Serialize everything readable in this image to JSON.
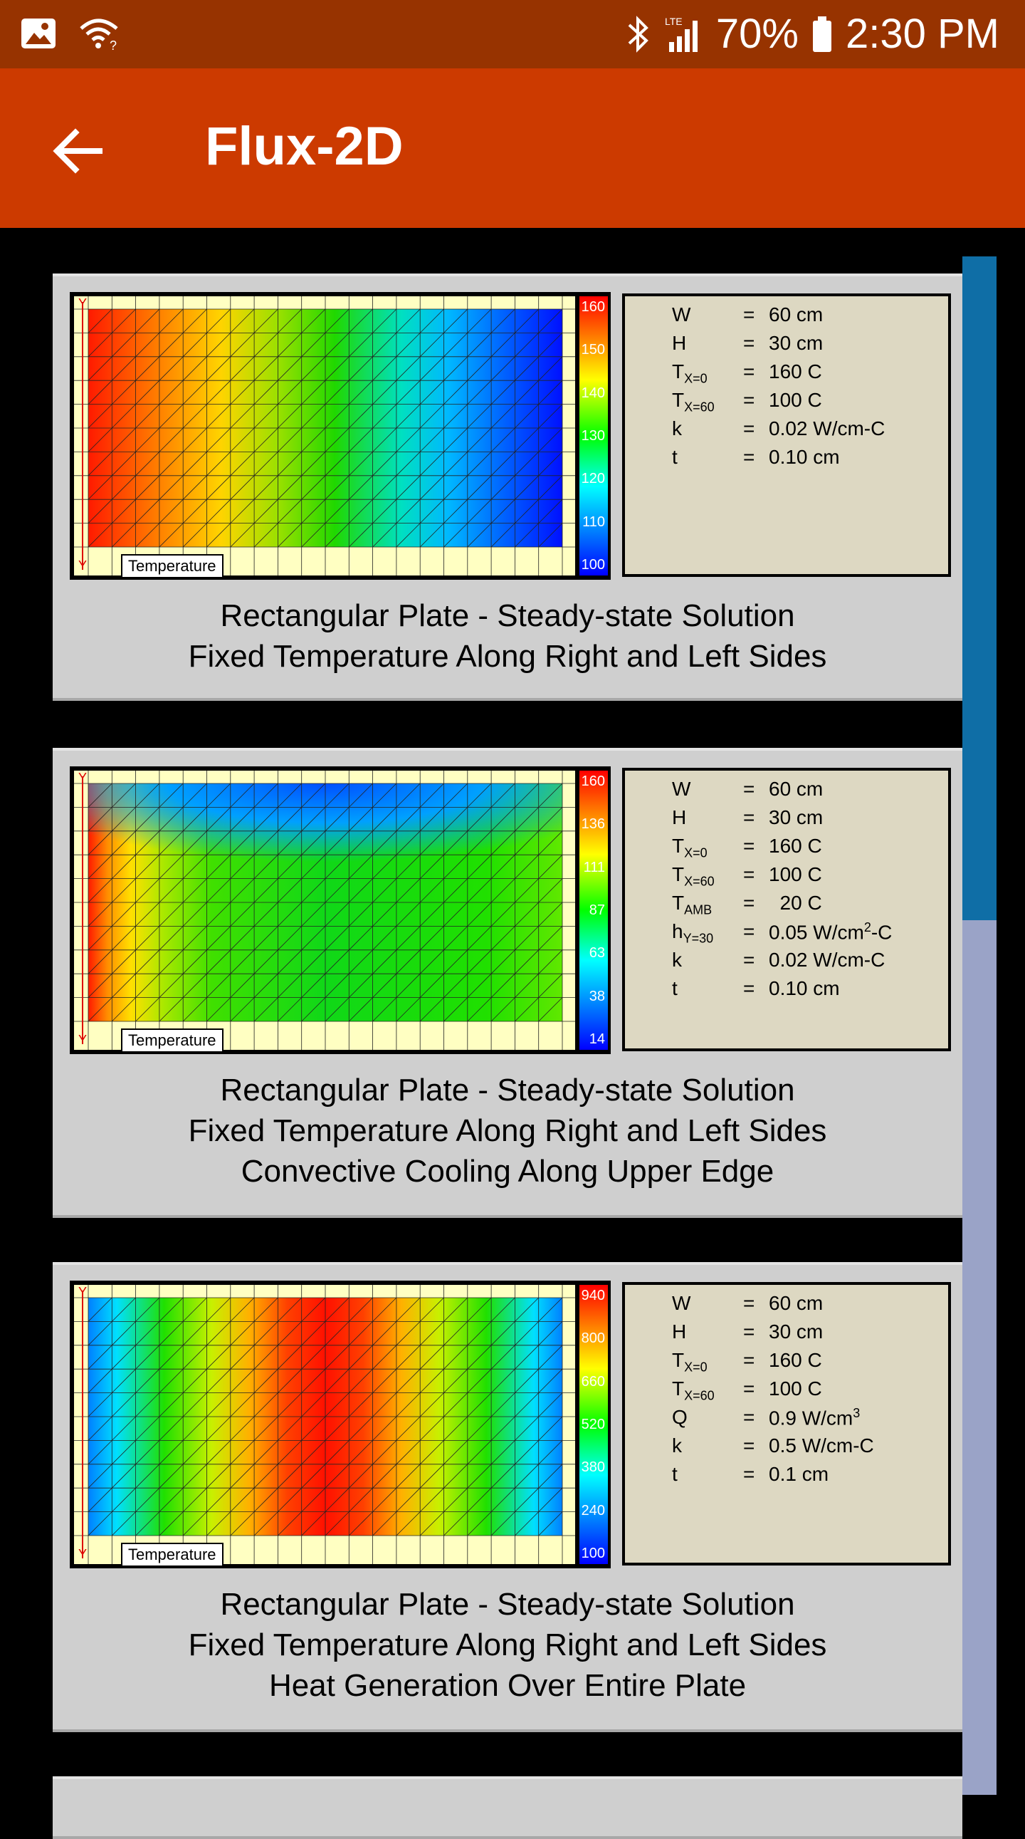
{
  "status": {
    "battery": "70%",
    "time": "2:30 PM",
    "network": "LTE"
  },
  "appbar": {
    "title": "Flux-2D"
  },
  "cards": [
    {
      "colorbar": [
        "160",
        "150",
        "140",
        "130",
        "120",
        "110",
        "100"
      ],
      "legend": "Temperature",
      "axis_label": "Y",
      "params": [
        {
          "sym": "W",
          "sub": "",
          "eq": "=",
          "val": "60 cm"
        },
        {
          "sym": "H",
          "sub": "",
          "eq": "=",
          "val": "30 cm"
        },
        {
          "sym": "T",
          "sub": "X=0",
          "eq": "=",
          "val": "160 C"
        },
        {
          "sym": "T",
          "sub": "X=60",
          "eq": "=",
          "val": "100 C"
        },
        {
          "sym": "k",
          "sub": "",
          "eq": "=",
          "val": "0.02 W/cm-C"
        },
        {
          "sym": "t",
          "sub": "",
          "eq": "=",
          "val": "0.10 cm"
        }
      ],
      "caption": [
        "Rectangular Plate - Steady-state Solution",
        "Fixed Temperature Along Right and Left Sides"
      ]
    },
    {
      "colorbar": [
        "160",
        "136",
        "111",
        "87",
        "63",
        "38",
        "14"
      ],
      "legend": "Temperature",
      "axis_label": "Y",
      "params": [
        {
          "sym": "W",
          "sub": "",
          "eq": "=",
          "val": "60 cm"
        },
        {
          "sym": "H",
          "sub": "",
          "eq": "=",
          "val": "30 cm"
        },
        {
          "sym": "T",
          "sub": "X=0",
          "eq": "=",
          "val": "160 C"
        },
        {
          "sym": "T",
          "sub": "X=60",
          "eq": "=",
          "val": "100 C"
        },
        {
          "sym": "T",
          "sub": "AMB",
          "eq": "=",
          "val": "  20 C"
        },
        {
          "sym": "h",
          "sub": "Y=30",
          "eq": "=",
          "val": "0.05 W/cm",
          "valsup": "2",
          "valtail": "-C"
        },
        {
          "sym": "k",
          "sub": "",
          "eq": "=",
          "val": "0.02 W/cm-C"
        },
        {
          "sym": "t",
          "sub": "",
          "eq": "=",
          "val": "0.10 cm"
        }
      ],
      "caption": [
        "Rectangular Plate - Steady-state Solution",
        "Fixed Temperature Along Right and Left Sides",
        "Convective Cooling Along Upper Edge"
      ]
    },
    {
      "colorbar": [
        "940",
        "800",
        "660",
        "520",
        "380",
        "240",
        "100"
      ],
      "legend": "Temperature",
      "axis_label": "Y",
      "params": [
        {
          "sym": "W",
          "sub": "",
          "eq": "=",
          "val": "60 cm"
        },
        {
          "sym": "H",
          "sub": "",
          "eq": "=",
          "val": "30 cm"
        },
        {
          "sym": "T",
          "sub": "X=0",
          "eq": "=",
          "val": "160 C"
        },
        {
          "sym": "T",
          "sub": "X=60",
          "eq": "=",
          "val": "100 C"
        },
        {
          "sym": "Q",
          "sub": "",
          "eq": "=",
          "val": "0.9 W/cm",
          "valsup": "3",
          "valtail": ""
        },
        {
          "sym": "k",
          "sub": "",
          "eq": "=",
          "val": "0.5 W/cm-C"
        },
        {
          "sym": "t",
          "sub": "",
          "eq": "=",
          "val": "0.1 cm"
        }
      ],
      "caption": [
        "Rectangular Plate - Steady-state Solution",
        "Fixed Temperature Along Right and Left Sides",
        "Heat Generation Over Entire Plate"
      ]
    }
  ],
  "colors": {
    "statusbar": "#973300",
    "appbar": "#cc3a00",
    "scroll_thumb": "#0f6ea6",
    "scroll_track": "#9aa3c7"
  }
}
